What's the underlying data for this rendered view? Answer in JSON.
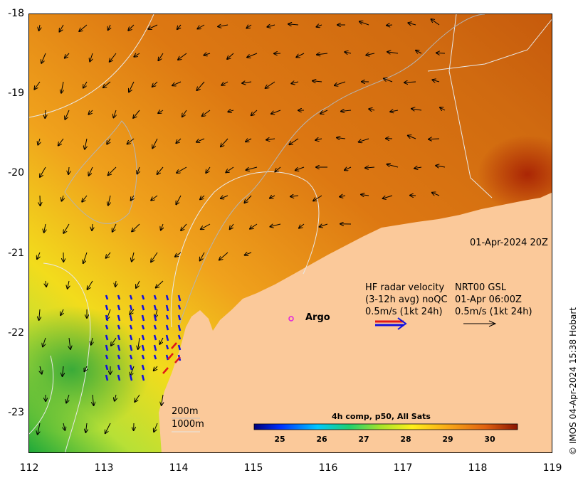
{
  "map": {
    "date_label": "01-Apr-2024 20Z",
    "legend": {
      "hf_line1": "HF radar velocity",
      "hf_line2": "(3-12h avg) noQC",
      "hf_line3": "0.5m/s (1kt 24h)",
      "nrt_line1": "NRT00 GSL",
      "nrt_line2": "01-Apr 06:00Z",
      "nrt_line3": "0.5m/s (1kt 24h)",
      "argo_label": "Argo"
    },
    "depth_labels": [
      "200m",
      "1000m"
    ],
    "colorbar": {
      "title": "4h comp, p50, All Sats",
      "ticks": [
        "25",
        "26",
        "27",
        "28",
        "29",
        "30"
      ]
    },
    "y_axis": [
      "-18",
      "-19",
      "-20",
      "-21",
      "-22",
      "-23"
    ],
    "x_axis": [
      "112",
      "113",
      "114",
      "115",
      "116",
      "117",
      "118",
      "119"
    ],
    "credit": "© IMOS 04-Apr-2024 15:38 Hobart",
    "colors": {
      "land": "#fbc99a",
      "ocean_warm": "#d97114",
      "ocean_cool": "#cfe02f",
      "hf_arrow": "#1010e0",
      "hf_arrow_alt": "#e01818",
      "argo": "#e020e0"
    }
  }
}
